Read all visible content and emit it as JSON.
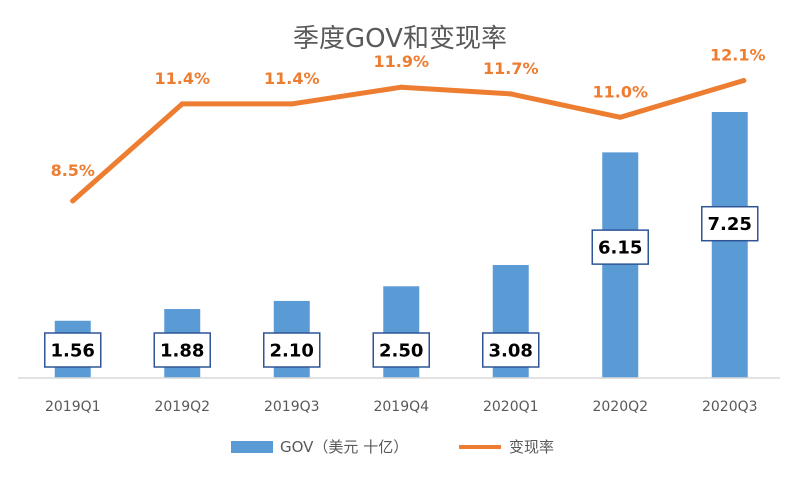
{
  "chart_data": {
    "type": "bar+line",
    "title": "季度GOV和变现率",
    "categories": [
      "2019Q1",
      "2019Q2",
      "2019Q3",
      "2019Q4",
      "2020Q1",
      "2020Q2",
      "2020Q3"
    ],
    "series": [
      {
        "name": "GOV（美元 十亿）",
        "type": "bar",
        "axis": "left",
        "values": [
          1.56,
          1.88,
          2.1,
          2.5,
          3.08,
          6.15,
          7.25
        ],
        "labels": [
          "1.56",
          "1.88",
          "2.10",
          "2.50",
          "3.08",
          "6.15",
          "7.25"
        ],
        "color": "#5b9bd5"
      },
      {
        "name": "变现率",
        "type": "line",
        "axis": "right",
        "values": [
          8.5,
          11.4,
          11.4,
          11.9,
          11.7,
          11.0,
          12.1
        ],
        "labels": [
          "8.5%",
          "11.4%",
          "11.4%",
          "11.9%",
          "11.7%",
          "11.0%",
          "12.1%"
        ],
        "color": "#ed7d31"
      }
    ],
    "ylim_left": [
      0,
      7.25
    ],
    "ylim_right": [
      0,
      14
    ],
    "grid": false,
    "legend": "bottom"
  },
  "colors": {
    "title": "#595959",
    "axis": "#d9d9d9",
    "tick_text": "#595959",
    "label_border": "#2f5597",
    "label_text": "#000000"
  }
}
